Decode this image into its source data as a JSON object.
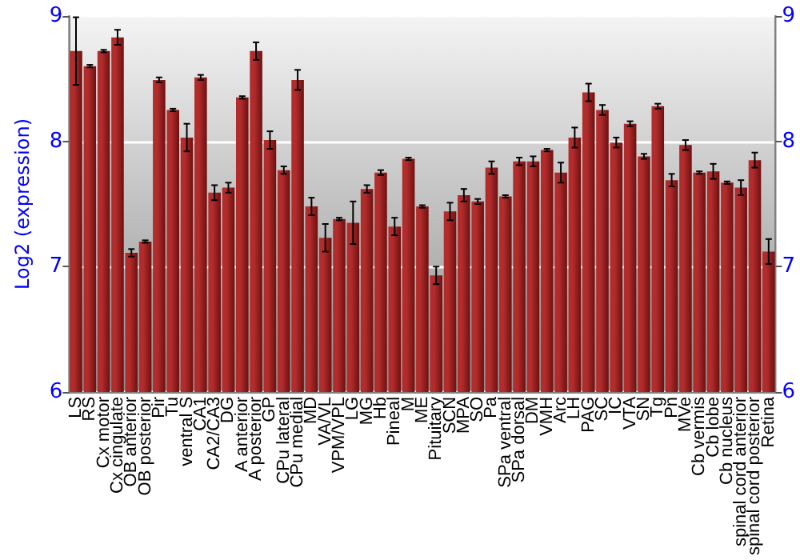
{
  "chart_data": {
    "type": "bar",
    "ylabel": "Log2 (expression)",
    "categories": [
      "LS",
      "RS",
      "Cx motor",
      "Cx cingulate",
      "OB anterior",
      "OB posterior",
      "Pir",
      "Tu",
      "ventral S",
      "CA1",
      "CA2/CA3",
      "DG",
      "A anterior",
      "A posterior",
      "GP",
      "CPu lateral",
      "CPu medial",
      "MD",
      "VA/VL",
      "VPM/VPL",
      "LG",
      "MG",
      "Hb",
      "Pineal",
      "M",
      "ME",
      "Pituitary",
      "SCN",
      "MPA",
      "SO",
      "Pa",
      "SPa ventral",
      "SPa dorsal",
      "DM",
      "VMH",
      "Arc",
      "LH",
      "PAG",
      "SC",
      "IC",
      "VTA",
      "SN",
      "Tg",
      "Pn",
      "MVe",
      "Cb vermis",
      "Cb lobe",
      "Cb nucleus",
      "spinal cord anterior",
      "spinal cord posterior",
      "Retina"
    ],
    "values": [
      8.72,
      8.6,
      8.72,
      8.83,
      7.11,
      7.2,
      8.49,
      8.25,
      8.03,
      8.51,
      7.59,
      7.63,
      8.35,
      8.72,
      8.01,
      7.77,
      8.49,
      7.48,
      7.23,
      7.38,
      7.35,
      7.62,
      7.75,
      7.32,
      7.86,
      7.48,
      6.93,
      7.44,
      7.57,
      7.52,
      7.79,
      7.56,
      7.84,
      7.84,
      7.93,
      7.75,
      8.03,
      8.39,
      8.25,
      7.99,
      8.14,
      7.88,
      8.28,
      7.69,
      7.97,
      7.75,
      7.76,
      7.67,
      7.63,
      7.85,
      7.12
    ],
    "errors": [
      0.27,
      0.01,
      0.01,
      0.06,
      0.03,
      0.01,
      0.02,
      0.01,
      0.11,
      0.02,
      0.06,
      0.04,
      0.01,
      0.07,
      0.07,
      0.03,
      0.08,
      0.07,
      0.11,
      0.01,
      0.17,
      0.03,
      0.02,
      0.07,
      0.01,
      0.01,
      0.07,
      0.07,
      0.05,
      0.02,
      0.05,
      0.01,
      0.03,
      0.04,
      0.01,
      0.08,
      0.08,
      0.07,
      0.04,
      0.04,
      0.02,
      0.02,
      0.02,
      0.05,
      0.04,
      0.01,
      0.06,
      0.01,
      0.06,
      0.06,
      0.1
    ],
    "color": "#b22c2c",
    "ylim": [
      6,
      9
    ],
    "yticks": [
      6,
      7,
      8,
      9
    ],
    "y2lim": [
      6,
      9
    ],
    "y2ticks": [
      6,
      7,
      8,
      9
    ],
    "grid": "y"
  }
}
